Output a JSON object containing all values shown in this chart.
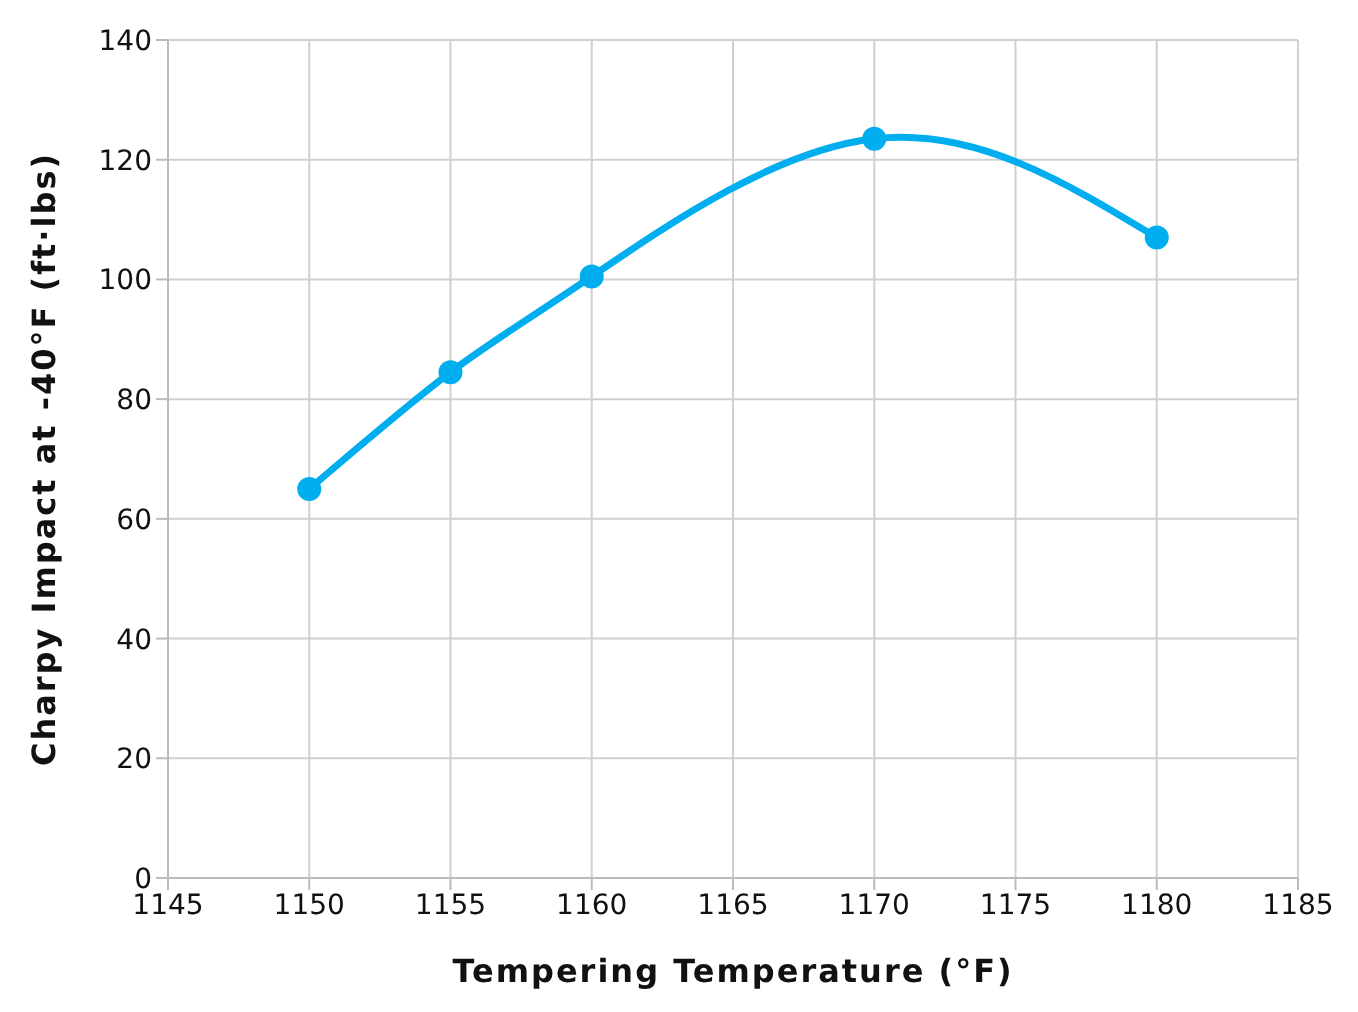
{
  "chart_data": {
    "type": "line",
    "xlabel": "Tempering Temperature (°F)",
    "ylabel": "Charpy Impact at -40°F (ft·lbs)",
    "x": [
      1150,
      1155,
      1160,
      1170,
      1180
    ],
    "series": [
      {
        "color": "#00aeef",
        "values": [
          65,
          84.5,
          100.5,
          123.5,
          107
        ]
      }
    ],
    "xlim": [
      1145,
      1185
    ],
    "xticks": [
      1145,
      1150,
      1155,
      1160,
      1165,
      1170,
      1175,
      1180,
      1185
    ],
    "ylim": [
      0,
      140
    ],
    "yticks": [
      0,
      20,
      40,
      60,
      80,
      100,
      120,
      140
    ],
    "grid": true,
    "marker": "circle",
    "line_style": "solid",
    "legend": false
  }
}
